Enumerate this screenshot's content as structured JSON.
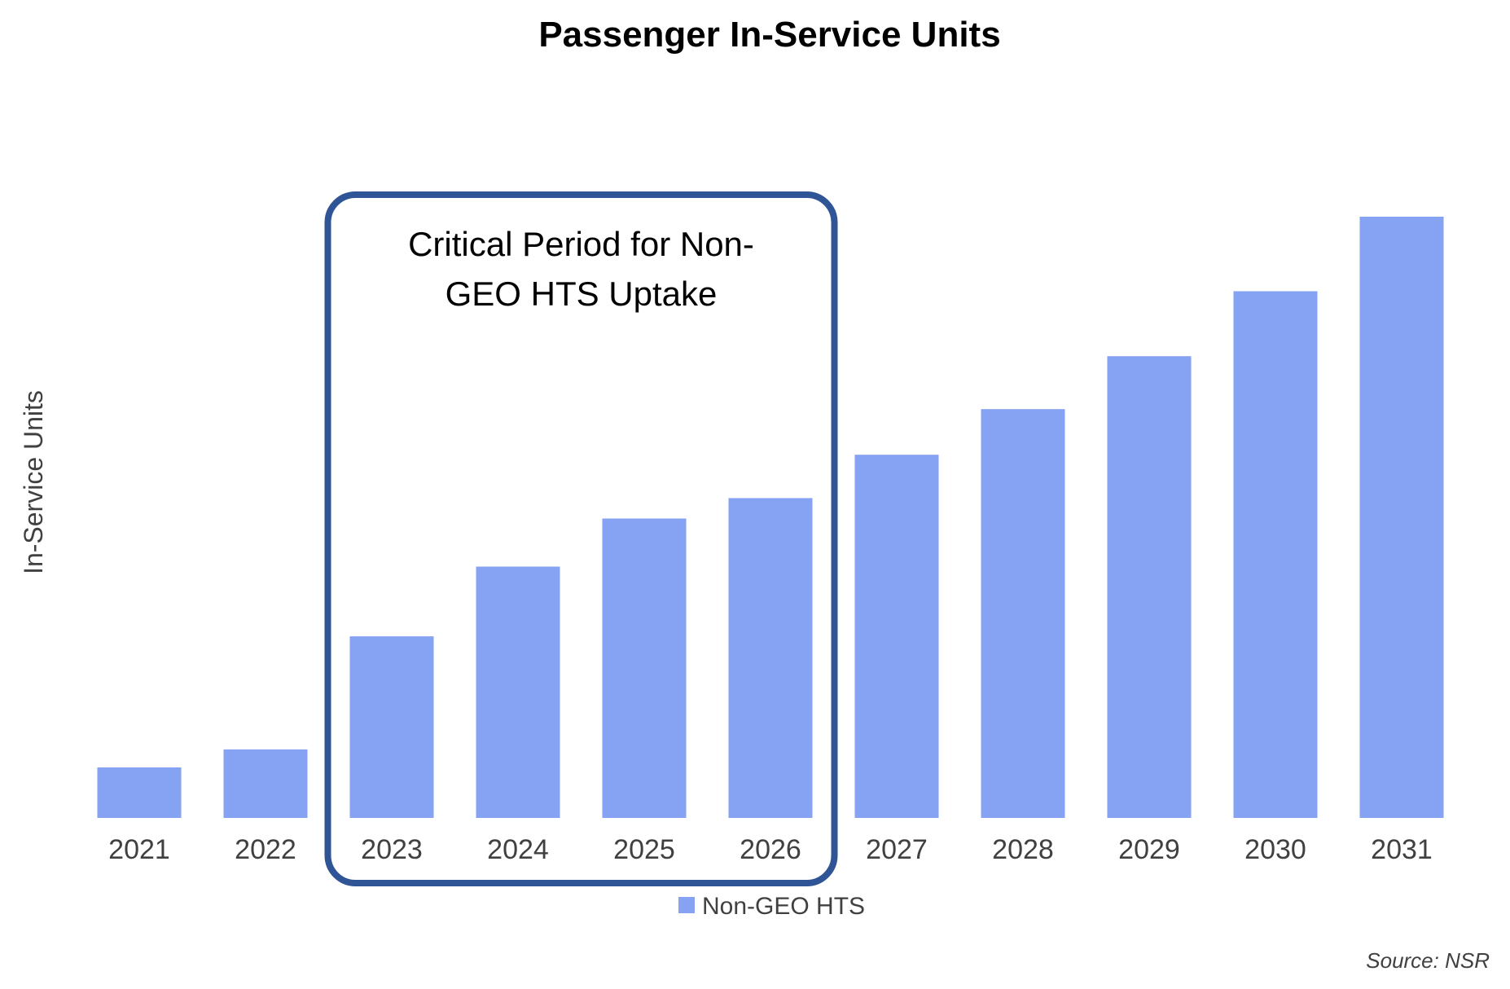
{
  "chart_data": {
    "type": "bar",
    "title": "Passenger In-Service Units",
    "xlabel": "",
    "ylabel": "In-Service Units",
    "categories": [
      "2021",
      "2022",
      "2023",
      "2024",
      "2025",
      "2026",
      "2027",
      "2028",
      "2029",
      "2030",
      "2031"
    ],
    "series": [
      {
        "name": "Non-GEO HTS",
        "color": "#86A2F3",
        "values": [
          8.4,
          11.4,
          30.2,
          41.8,
          49.8,
          53.2,
          60.4,
          68.0,
          76.8,
          87.6,
          100
        ]
      }
    ],
    "ylim": [
      0,
      100
    ],
    "grid": false,
    "y_tick_labels_shown": false,
    "legend": {
      "position": "bottom",
      "entries": [
        "Non-GEO HTS"
      ]
    },
    "annotation": {
      "lines": [
        "Critical Period for Non-",
        "GEO HTS Uptake"
      ],
      "highlight_categories": [
        "2023",
        "2024",
        "2025",
        "2026"
      ],
      "border_color": "#2F5597"
    },
    "source": "Source: NSR"
  }
}
